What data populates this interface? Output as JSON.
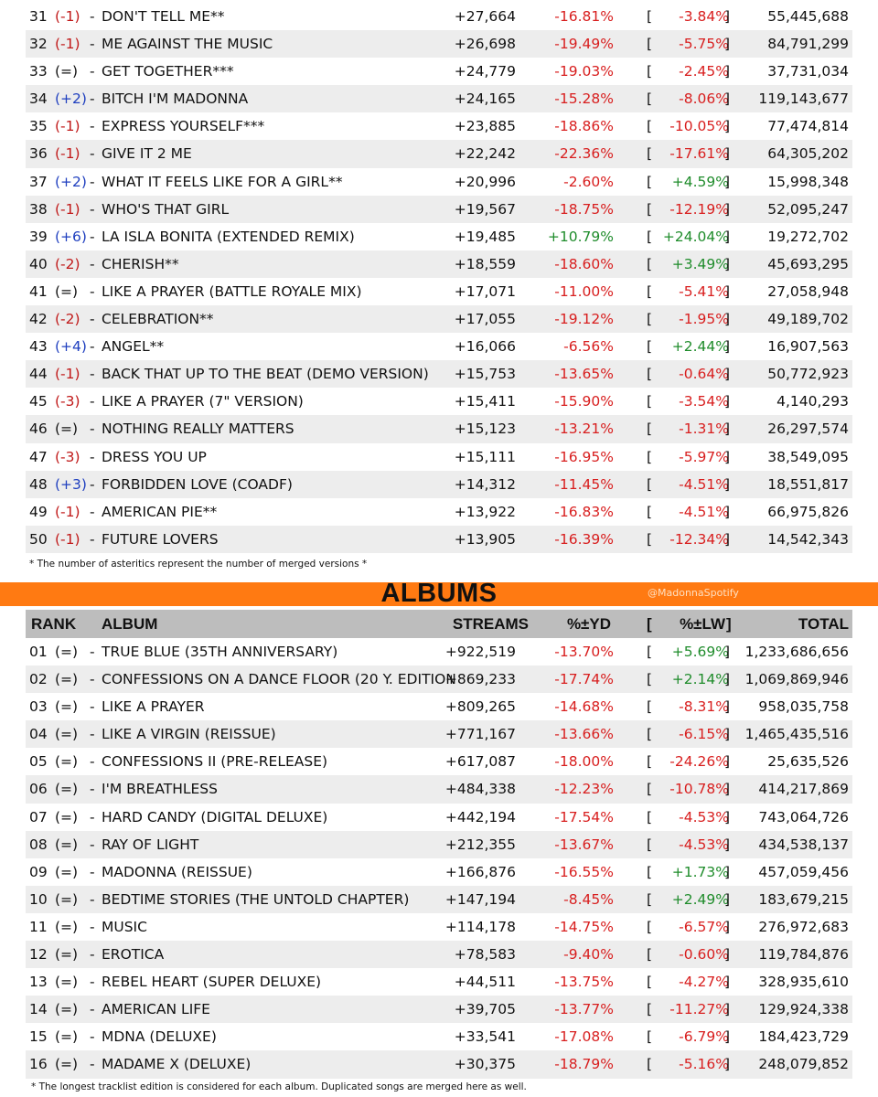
{
  "songs": [
    {
      "rank": "31",
      "change": "(-1)",
      "title": "DON'T TELL ME**",
      "streams": "+27,664",
      "yd": "-16.81%",
      "lw": "-3.84%",
      "total": "55,445,688"
    },
    {
      "rank": "32",
      "change": "(-1)",
      "title": "ME AGAINST THE MUSIC",
      "streams": "+26,698",
      "yd": "-19.49%",
      "lw": "-5.75%",
      "total": "84,791,299"
    },
    {
      "rank": "33",
      "change": "(=)",
      "title": "GET TOGETHER***",
      "streams": "+24,779",
      "yd": "-19.03%",
      "lw": "-2.45%",
      "total": "37,731,034"
    },
    {
      "rank": "34",
      "change": "(+2)",
      "title": "BITCH I'M MADONNA",
      "streams": "+24,165",
      "yd": "-15.28%",
      "lw": "-8.06%",
      "total": "119,143,677"
    },
    {
      "rank": "35",
      "change": "(-1)",
      "title": "EXPRESS YOURSELF***",
      "streams": "+23,885",
      "yd": "-18.86%",
      "lw": "-10.05%",
      "total": "77,474,814"
    },
    {
      "rank": "36",
      "change": "(-1)",
      "title": "GIVE IT 2 ME",
      "streams": "+22,242",
      "yd": "-22.36%",
      "lw": "-17.61%",
      "total": "64,305,202"
    },
    {
      "rank": "37",
      "change": "(+2)",
      "title": "WHAT IT FEELS LIKE FOR A GIRL**",
      "streams": "+20,996",
      "yd": "-2.60%",
      "lw": "+4.59%",
      "total": "15,998,348"
    },
    {
      "rank": "38",
      "change": "(-1)",
      "title": "WHO'S THAT GIRL",
      "streams": "+19,567",
      "yd": "-18.75%",
      "lw": "-12.19%",
      "total": "52,095,247"
    },
    {
      "rank": "39",
      "change": "(+6)",
      "title": "LA ISLA BONITA (EXTENDED REMIX)",
      "streams": "+19,485",
      "yd": "+10.79%",
      "lw": "+24.04%",
      "total": "19,272,702"
    },
    {
      "rank": "40",
      "change": "(-2)",
      "title": "CHERISH**",
      "streams": "+18,559",
      "yd": "-18.60%",
      "lw": "+3.49%",
      "total": "45,693,295"
    },
    {
      "rank": "41",
      "change": "(=)",
      "title": "LIKE A PRAYER (BATTLE ROYALE MIX)",
      "streams": "+17,071",
      "yd": "-11.00%",
      "lw": "-5.41%",
      "total": "27,058,948"
    },
    {
      "rank": "42",
      "change": "(-2)",
      "title": "CELEBRATION**",
      "streams": "+17,055",
      "yd": "-19.12%",
      "lw": "-1.95%",
      "total": "49,189,702"
    },
    {
      "rank": "43",
      "change": "(+4)",
      "title": "ANGEL**",
      "streams": "+16,066",
      "yd": "-6.56%",
      "lw": "+2.44%",
      "total": "16,907,563"
    },
    {
      "rank": "44",
      "change": "(-1)",
      "title": "BACK THAT UP TO THE BEAT (DEMO VERSION)",
      "streams": "+15,753",
      "yd": "-13.65%",
      "lw": "-0.64%",
      "total": "50,772,923"
    },
    {
      "rank": "45",
      "change": "(-3)",
      "title": "LIKE A PRAYER (7\" VERSION)",
      "streams": "+15,411",
      "yd": "-15.90%",
      "lw": "-3.54%",
      "total": "4,140,293"
    },
    {
      "rank": "46",
      "change": "(=)",
      "title": "NOTHING REALLY MATTERS",
      "streams": "+15,123",
      "yd": "-13.21%",
      "lw": "-1.31%",
      "total": "26,297,574"
    },
    {
      "rank": "47",
      "change": "(-3)",
      "title": "DRESS YOU UP",
      "streams": "+15,111",
      "yd": "-16.95%",
      "lw": "-5.97%",
      "total": "38,549,095"
    },
    {
      "rank": "48",
      "change": "(+3)",
      "title": "FORBIDDEN LOVE (COADF)",
      "streams": "+14,312",
      "yd": "-11.45%",
      "lw": "-4.51%",
      "total": "18,551,817"
    },
    {
      "rank": "49",
      "change": "(-1)",
      "title": "AMERICAN PIE**",
      "streams": "+13,922",
      "yd": "-16.83%",
      "lw": "-4.51%",
      "total": "66,975,826"
    },
    {
      "rank": "50",
      "change": "(-1)",
      "title": "FUTURE LOVERS",
      "streams": "+13,905",
      "yd": "-16.39%",
      "lw": "-12.34%",
      "total": "14,542,343"
    }
  ],
  "songs_footnote": "* The number of asteritics represent the number of merged versions *",
  "albums_title": "ALBUMS",
  "handle": "@MadonnaSpotify",
  "album_headers": {
    "rank": "RANK",
    "album": "ALBUM",
    "streams": "STREAMS",
    "yd": "%±YD",
    "lb": "[",
    "lw": "%±LW",
    "rb": "]",
    "total": "TOTAL"
  },
  "albums": [
    {
      "rank": "01",
      "change": "(=)",
      "title": "TRUE BLUE (35TH ANNIVERSARY)",
      "streams": "+922,519",
      "yd": "-13.70%",
      "lw": "+5.69%",
      "total": "1,233,686,656"
    },
    {
      "rank": "02",
      "change": "(=)",
      "title": "CONFESSIONS ON A DANCE FLOOR (20 Y. EDITION",
      "streams": "+869,233",
      "yd": "-17.74%",
      "lw": "+2.14%",
      "total": "1,069,869,946"
    },
    {
      "rank": "03",
      "change": "(=)",
      "title": "LIKE A PRAYER",
      "streams": "+809,265",
      "yd": "-14.68%",
      "lw": "-8.31%",
      "total": "958,035,758"
    },
    {
      "rank": "04",
      "change": "(=)",
      "title": "LIKE A VIRGIN (REISSUE)",
      "streams": "+771,167",
      "yd": "-13.66%",
      "lw": "-6.15%",
      "total": "1,465,435,516"
    },
    {
      "rank": "05",
      "change": "(=)",
      "title": "CONFESSIONS II (PRE-RELEASE)",
      "streams": "+617,087",
      "yd": "-18.00%",
      "lw": "-24.26%",
      "total": "25,635,526"
    },
    {
      "rank": "06",
      "change": "(=)",
      "title": "I'M BREATHLESS",
      "streams": "+484,338",
      "yd": "-12.23%",
      "lw": "-10.78%",
      "total": "414,217,869"
    },
    {
      "rank": "07",
      "change": "(=)",
      "title": "HARD CANDY (DIGITAL DELUXE)",
      "streams": "+442,194",
      "yd": "-17.54%",
      "lw": "-4.53%",
      "total": "743,064,726"
    },
    {
      "rank": "08",
      "change": "(=)",
      "title": "RAY OF LIGHT",
      "streams": "+212,355",
      "yd": "-13.67%",
      "lw": "-4.53%",
      "total": "434,538,137"
    },
    {
      "rank": "09",
      "change": "(=)",
      "title": "MADONNA (REISSUE)",
      "streams": "+166,876",
      "yd": "-16.55%",
      "lw": "+1.73%",
      "total": "457,059,456"
    },
    {
      "rank": "10",
      "change": "(=)",
      "title": "BEDTIME STORIES (THE UNTOLD CHAPTER)",
      "streams": "+147,194",
      "yd": "-8.45%",
      "lw": "+2.49%",
      "total": "183,679,215"
    },
    {
      "rank": "11",
      "change": "(=)",
      "title": "MUSIC",
      "streams": "+114,178",
      "yd": "-14.75%",
      "lw": "-6.57%",
      "total": "276,972,683"
    },
    {
      "rank": "12",
      "change": "(=)",
      "title": "EROTICA",
      "streams": "+78,583",
      "yd": "-9.40%",
      "lw": "-0.60%",
      "total": "119,784,876"
    },
    {
      "rank": "13",
      "change": "(=)",
      "title": "REBEL HEART (SUPER DELUXE)",
      "streams": "+44,511",
      "yd": "-13.75%",
      "lw": "-4.27%",
      "total": "328,935,610"
    },
    {
      "rank": "14",
      "change": "(=)",
      "title": "AMERICAN LIFE",
      "streams": "+39,705",
      "yd": "-13.77%",
      "lw": "-11.27%",
      "total": "129,924,338"
    },
    {
      "rank": "15",
      "change": "(=)",
      "title": "MDNA (DELUXE)",
      "streams": "+33,541",
      "yd": "-17.08%",
      "lw": "-6.79%",
      "total": "184,423,729"
    },
    {
      "rank": "16",
      "change": "(=)",
      "title": "MADAME X (DELUXE)",
      "streams": "+30,375",
      "yd": "-18.79%",
      "lw": "-5.16%",
      "total": "248,079,852"
    }
  ],
  "albums_footnote": "* The longest tracklist edition is considered for each album. Duplicated songs are merged here as well.",
  "colors": {
    "negative": "#d81e1e",
    "positive": "#1f8c2b",
    "rank_up": "#1f3fbf",
    "rank_down": "#c01818",
    "accent_bar": "#ff7a12",
    "row_shade": "#ededed",
    "header_bg": "#bdbdbd"
  }
}
